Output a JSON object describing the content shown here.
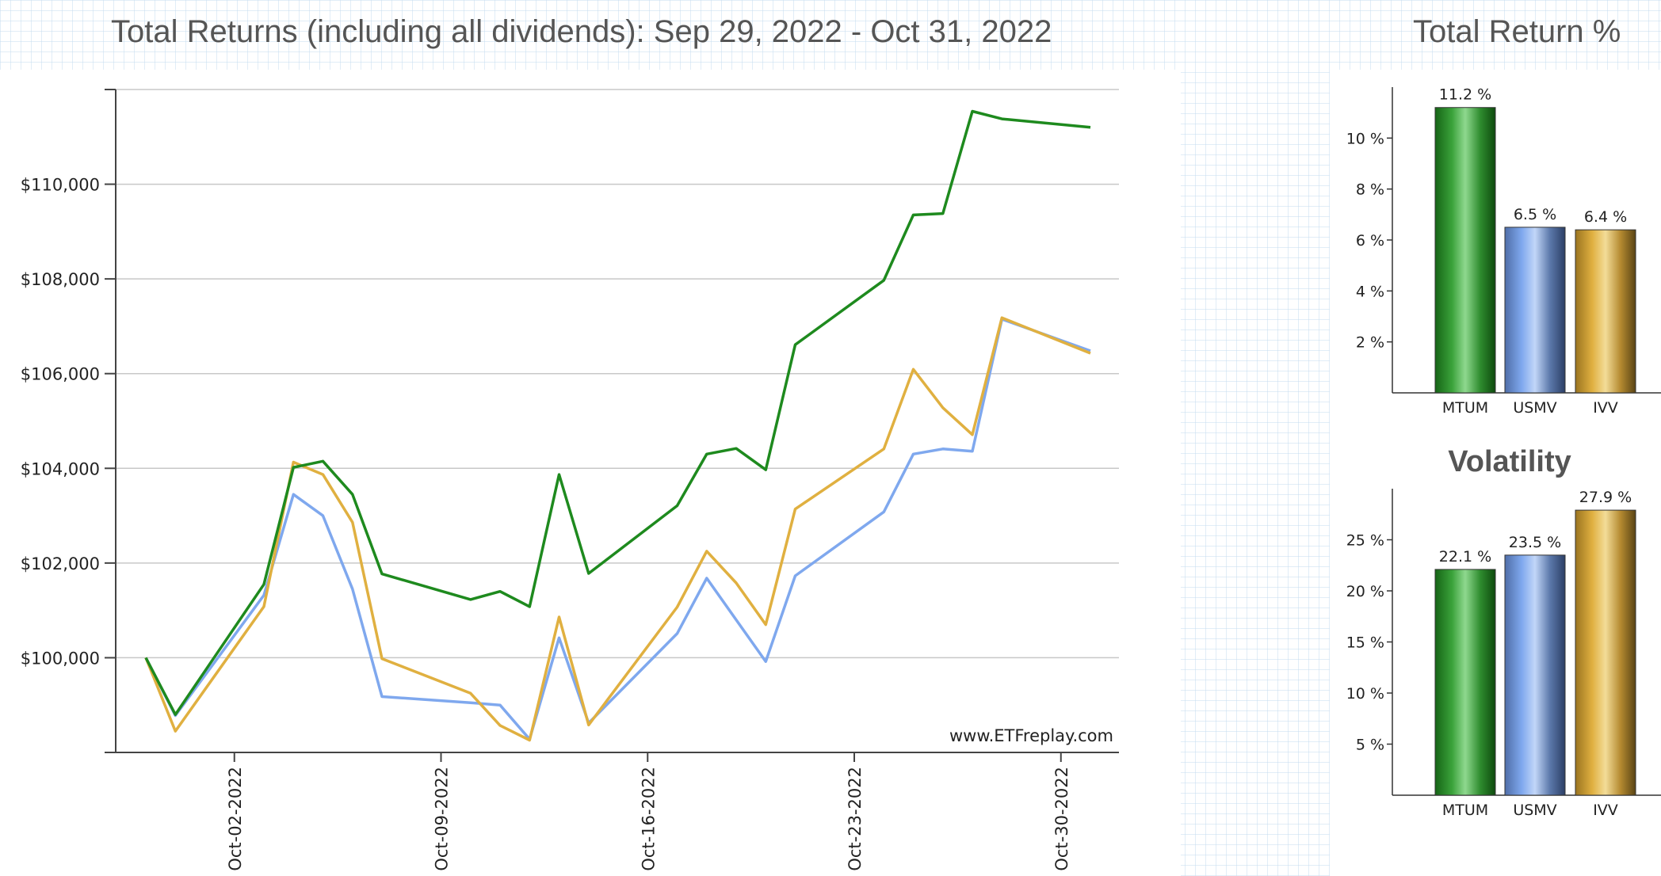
{
  "main_title": "Total Returns (including all dividends): Sep 29, 2022 - Oct 31, 2022",
  "side_title": "Total Return %",
  "watermark": "www.ETFreplay.com",
  "colors": {
    "MTUM": "#1e8a1e",
    "USMV": "#7fa8ee",
    "IVV": "#e0b040"
  },
  "chart_data": [
    {
      "type": "line",
      "title": "Total Returns (including all dividends): Sep 29, 2022 - Oct 31, 2022",
      "x_tick_labels": [
        "Oct-02-2022",
        "Oct-09-2022",
        "Oct-16-2022",
        "Oct-23-2022",
        "Oct-30-2022"
      ],
      "y_tick_labels": [
        "$100,000",
        "$102,000",
        "$104,000",
        "$106,000",
        "$108,000",
        "$110,000"
      ],
      "x": [
        "2022-09-29",
        "2022-09-30",
        "2022-10-03",
        "2022-10-04",
        "2022-10-05",
        "2022-10-06",
        "2022-10-07",
        "2022-10-10",
        "2022-10-11",
        "2022-10-12",
        "2022-10-13",
        "2022-10-14",
        "2022-10-17",
        "2022-10-18",
        "2022-10-19",
        "2022-10-20",
        "2022-10-21",
        "2022-10-24",
        "2022-10-25",
        "2022-10-26",
        "2022-10-27",
        "2022-10-28",
        "2022-10-31"
      ],
      "series": [
        {
          "name": "MTUM",
          "values": [
            100000,
            98800,
            101550,
            104020,
            104150,
            103450,
            101770,
            101230,
            101400,
            101080,
            103870,
            101780,
            103210,
            104300,
            104420,
            103970,
            106610,
            107970,
            109350,
            109380,
            111540,
            111380,
            111200
          ]
        },
        {
          "name": "USMV",
          "values": [
            100000,
            98780,
            101320,
            103450,
            103000,
            101450,
            99180,
            99050,
            99000,
            98280,
            100420,
            98620,
            100510,
            101680,
            100800,
            99920,
            101730,
            103080,
            104300,
            104410,
            104360,
            107150,
            106480
          ]
        },
        {
          "name": "IVV",
          "values": [
            100000,
            98450,
            101080,
            104130,
            103870,
            102860,
            99980,
            99250,
            98570,
            98260,
            100860,
            98580,
            101070,
            102250,
            101580,
            100700,
            103140,
            104410,
            106090,
            105280,
            104710,
            107180,
            106430
          ]
        }
      ],
      "ylim": [
        98000,
        112000
      ],
      "grid": true
    },
    {
      "type": "bar",
      "title": "Total Return %",
      "categories": [
        "MTUM",
        "USMV",
        "IVV"
      ],
      "values": [
        11.2,
        6.5,
        6.4
      ],
      "value_labels": [
        "11.2 %",
        "6.5 %",
        "6.4 %"
      ],
      "y_tick_labels": [
        "2 %",
        "4 %",
        "6 %",
        "8 %",
        "10 %"
      ],
      "ylim": [
        0,
        12
      ]
    },
    {
      "type": "bar",
      "title": "Volatility",
      "categories": [
        "MTUM",
        "USMV",
        "IVV"
      ],
      "values": [
        22.1,
        23.5,
        27.9
      ],
      "value_labels": [
        "22.1 %",
        "23.5 %",
        "27.9 %"
      ],
      "y_tick_labels": [
        "5 %",
        "10 %",
        "15 %",
        "20 %",
        "25 %"
      ],
      "ylim": [
        0,
        30
      ]
    }
  ]
}
